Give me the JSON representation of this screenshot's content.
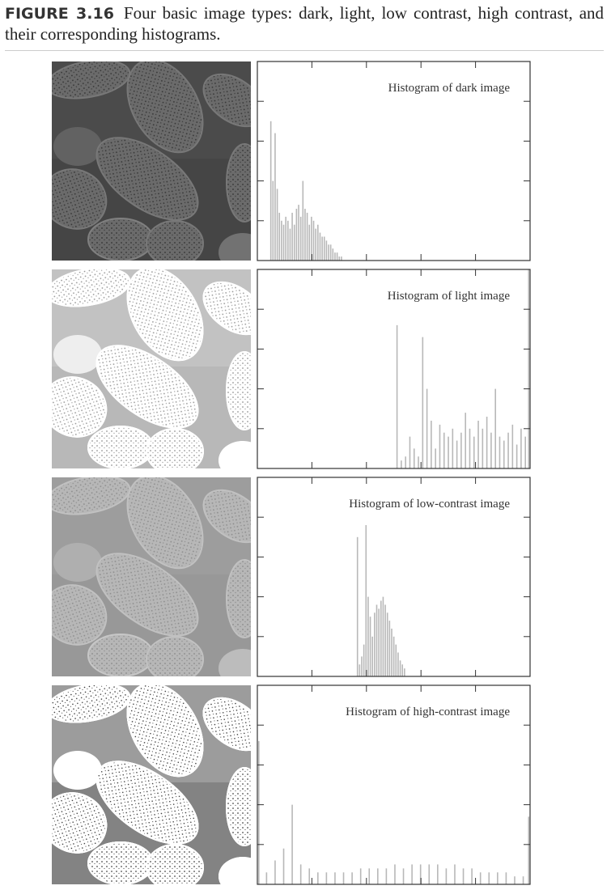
{
  "caption": {
    "label": "FIGURE 3.16",
    "text": "Four basic image types: dark, light, low contrast, high contrast, and their corresponding histograms."
  },
  "chart_data": [
    {
      "type": "bar",
      "title": "Histogram of dark image",
      "color": "#b8b8b8",
      "x": [
        12,
        14,
        16,
        18,
        20,
        22,
        24,
        26,
        28,
        30,
        32,
        34,
        36,
        38,
        40,
        42,
        44,
        46,
        48,
        50,
        52,
        54,
        56,
        58,
        60,
        62,
        64,
        66,
        68,
        70,
        72,
        74,
        76,
        78
      ],
      "values": [
        3.5,
        2.0,
        3.2,
        1.8,
        1.2,
        1.0,
        0.9,
        1.1,
        1.0,
        0.8,
        1.2,
        0.9,
        1.3,
        1.4,
        1.1,
        2.0,
        1.3,
        1.2,
        0.9,
        1.1,
        1.0,
        0.8,
        0.9,
        0.7,
        0.6,
        0.6,
        0.5,
        0.4,
        0.4,
        0.3,
        0.2,
        0.2,
        0.1,
        0.1
      ],
      "xlim": [
        0,
        255
      ],
      "ylim": [
        0,
        5
      ],
      "xticks": [
        51,
        102,
        153,
        204
      ],
      "yticks": [
        1,
        2,
        3,
        4
      ]
    },
    {
      "type": "bar",
      "title": "Histogram of light image",
      "color": "#b8b8b8",
      "x": [
        130,
        134,
        138,
        142,
        146,
        150,
        154,
        158,
        162,
        166,
        170,
        174,
        178,
        182,
        186,
        190,
        194,
        198,
        202,
        206,
        210,
        214,
        218,
        222,
        226,
        230,
        234,
        238,
        242,
        246,
        250,
        254
      ],
      "values": [
        3.6,
        0.2,
        0.3,
        0.8,
        0.5,
        0.3,
        3.3,
        2.0,
        1.2,
        0.5,
        1.1,
        0.9,
        0.8,
        1.0,
        0.7,
        0.9,
        1.4,
        1.0,
        0.8,
        1.2,
        1.0,
        1.3,
        0.9,
        2.0,
        0.8,
        0.7,
        0.9,
        1.1,
        0.6,
        1.0,
        0.8,
        5.0
      ],
      "xlim": [
        0,
        255
      ],
      "ylim": [
        0,
        5
      ],
      "xticks": [
        51,
        102,
        153,
        204
      ],
      "yticks": [
        1,
        2,
        3,
        4
      ]
    },
    {
      "type": "bar",
      "title": "Histogram of low-contrast image",
      "color": "#b8b8b8",
      "x": [
        93,
        95,
        97,
        99,
        101,
        103,
        105,
        107,
        109,
        111,
        113,
        115,
        117,
        119,
        121,
        123,
        125,
        127,
        129,
        131,
        133,
        135,
        137
      ],
      "values": [
        3.5,
        0.3,
        0.5,
        0.8,
        3.8,
        2.0,
        1.5,
        1.0,
        1.6,
        1.8,
        1.7,
        1.9,
        2.0,
        1.8,
        1.6,
        1.4,
        1.2,
        1.0,
        0.8,
        0.6,
        0.4,
        0.3,
        0.2
      ],
      "xlim": [
        0,
        255
      ],
      "ylim": [
        0,
        5
      ],
      "xticks": [
        51,
        102,
        153,
        204
      ],
      "yticks": [
        1,
        2,
        3,
        4
      ]
    },
    {
      "type": "bar",
      "title": "Histogram of high-contrast image",
      "color": "#b8b8b8",
      "x": [
        0,
        8,
        16,
        24,
        32,
        40,
        48,
        56,
        64,
        72,
        80,
        88,
        96,
        104,
        112,
        120,
        128,
        136,
        144,
        152,
        160,
        168,
        176,
        184,
        192,
        200,
        208,
        216,
        224,
        232,
        240,
        248,
        255
      ],
      "values": [
        3.6,
        0.3,
        0.6,
        0.9,
        2.0,
        0.5,
        0.4,
        0.3,
        0.3,
        0.3,
        0.3,
        0.3,
        0.4,
        0.4,
        0.4,
        0.4,
        0.5,
        0.4,
        0.5,
        0.5,
        0.5,
        0.5,
        0.4,
        0.5,
        0.4,
        0.4,
        0.3,
        0.3,
        0.3,
        0.3,
        0.2,
        0.2,
        1.7
      ],
      "xlim": [
        0,
        255
      ],
      "ylim": [
        0,
        5
      ],
      "xticks": [
        51,
        102,
        153,
        204
      ],
      "yticks": [
        1,
        2,
        3,
        4
      ]
    }
  ]
}
